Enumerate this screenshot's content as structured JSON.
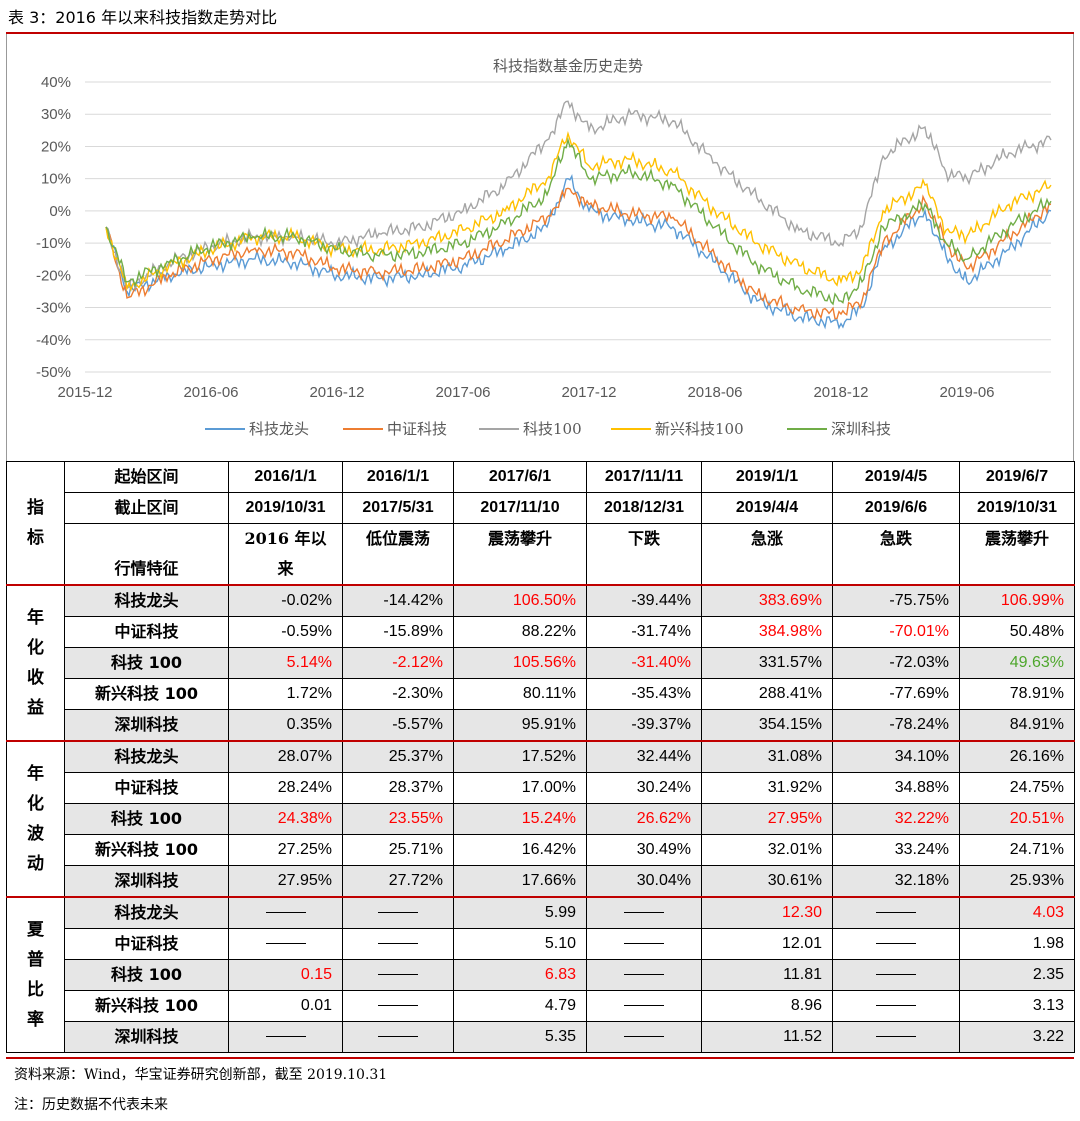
{
  "table_title": "表 3：2016 年以来科技指数走势对比",
  "chart_data": {
    "type": "line",
    "title": "科技指数基金历史走势",
    "yticks": [
      "40%",
      "30%",
      "20%",
      "10%",
      "0%",
      "-10%",
      "-20%",
      "-30%",
      "-40%",
      "-50%"
    ],
    "ylim": [
      -50,
      40
    ],
    "xticks": [
      "2015-12",
      "2016-06",
      "2016-12",
      "2017-06",
      "2017-12",
      "2018-06",
      "2018-12",
      "2019-06"
    ],
    "x_range": [
      "2015-12",
      "2019-10"
    ],
    "grid": true,
    "legend_position": "bottom",
    "series": [
      {
        "name": "科技龙头",
        "color": "#5b9bd5",
        "x": [
          "2016-01",
          "2016-02",
          "2016-04",
          "2016-06",
          "2016-08",
          "2016-10",
          "2016-12",
          "2017-02",
          "2017-04",
          "2017-06",
          "2017-08",
          "2017-10",
          "2017-11",
          "2017-12",
          "2018-02",
          "2018-04",
          "2018-06",
          "2018-08",
          "2018-10",
          "2018-12",
          "2019-01",
          "2019-02",
          "2019-04",
          "2019-05",
          "2019-06",
          "2019-08",
          "2019-10"
        ],
        "y": [
          -5,
          -25,
          -20,
          -17,
          -15,
          -16,
          -20,
          -21,
          -20,
          -17,
          -12,
          -5,
          10,
          0,
          -3,
          -5,
          -16,
          -28,
          -33,
          -35,
          -30,
          -12,
          0,
          -14,
          -22,
          -12,
          0
        ]
      },
      {
        "name": "中证科技",
        "color": "#ed7d31",
        "x": [
          "2016-01",
          "2016-02",
          "2016-04",
          "2016-06",
          "2016-08",
          "2016-10",
          "2016-12",
          "2017-02",
          "2017-04",
          "2017-06",
          "2017-08",
          "2017-10",
          "2017-11",
          "2017-12",
          "2018-02",
          "2018-04",
          "2018-06",
          "2018-08",
          "2018-10",
          "2018-12",
          "2019-01",
          "2019-02",
          "2019-04",
          "2019-05",
          "2019-06",
          "2019-08",
          "2019-10"
        ],
        "y": [
          -5,
          -27,
          -20,
          -15,
          -12,
          -13,
          -18,
          -19,
          -18,
          -15,
          -9,
          -2,
          7,
          2,
          -1,
          -2,
          -14,
          -26,
          -31,
          -32,
          -28,
          -10,
          3,
          -10,
          -18,
          -8,
          2
        ]
      },
      {
        "name": "科技100",
        "color": "#a5a5a5",
        "x": [
          "2016-01",
          "2016-02",
          "2016-04",
          "2016-06",
          "2016-08",
          "2016-10",
          "2016-12",
          "2017-02",
          "2017-04",
          "2017-06",
          "2017-08",
          "2017-10",
          "2017-11",
          "2017-12",
          "2018-02",
          "2018-04",
          "2018-06",
          "2018-08",
          "2018-10",
          "2018-12",
          "2019-01",
          "2019-02",
          "2019-04",
          "2019-05",
          "2019-06",
          "2019-08",
          "2019-10"
        ],
        "y": [
          -5,
          -24,
          -16,
          -11,
          -8,
          -8,
          -10,
          -7,
          -5,
          0,
          8,
          22,
          34,
          25,
          30,
          28,
          15,
          4,
          -6,
          -10,
          -5,
          17,
          26,
          12,
          10,
          18,
          22
        ]
      },
      {
        "name": "新兴科技100",
        "color": "#ffc000",
        "x": [
          "2016-01",
          "2016-02",
          "2016-04",
          "2016-06",
          "2016-08",
          "2016-10",
          "2016-12",
          "2017-02",
          "2017-04",
          "2017-06",
          "2017-08",
          "2017-10",
          "2017-11",
          "2017-12",
          "2018-02",
          "2018-04",
          "2018-06",
          "2018-08",
          "2018-10",
          "2018-12",
          "2019-01",
          "2019-02",
          "2019-04",
          "2019-05",
          "2019-06",
          "2019-08",
          "2019-10"
        ],
        "y": [
          -5,
          -24,
          -17,
          -12,
          -8,
          -8,
          -12,
          -12,
          -10,
          -6,
          0,
          10,
          24,
          14,
          16,
          12,
          0,
          -10,
          -17,
          -22,
          -18,
          0,
          8,
          -6,
          -8,
          2,
          8
        ]
      },
      {
        "name": "深圳科技",
        "color": "#70ad47",
        "x": [
          "2016-01",
          "2016-02",
          "2016-04",
          "2016-06",
          "2016-08",
          "2016-10",
          "2016-12",
          "2017-02",
          "2017-04",
          "2017-06",
          "2017-08",
          "2017-10",
          "2017-11",
          "2017-12",
          "2018-02",
          "2018-04",
          "2018-06",
          "2018-08",
          "2018-10",
          "2018-12",
          "2019-01",
          "2019-02",
          "2019-04",
          "2019-05",
          "2019-06",
          "2019-08",
          "2019-10"
        ],
        "y": [
          -5,
          -22,
          -16,
          -11,
          -8,
          -8,
          -12,
          -14,
          -13,
          -10,
          -4,
          5,
          22,
          10,
          12,
          8,
          -5,
          -17,
          -24,
          -28,
          -22,
          -5,
          2,
          -10,
          -15,
          -5,
          3
        ]
      }
    ]
  },
  "table": {
    "header": {
      "indicator_label": "指标",
      "start_label": "起始区间",
      "end_label": "截止区间",
      "feature_label": "行情特征",
      "periods": [
        {
          "start": "2016/1/1",
          "end": "2019/10/31",
          "feature": "2016 年以来"
        },
        {
          "start": "2016/1/1",
          "end": "2017/5/31",
          "feature": "低位震荡"
        },
        {
          "start": "2017/6/1",
          "end": "2017/11/10",
          "feature": "震荡攀升"
        },
        {
          "start": "2017/11/11",
          "end": "2018/12/31",
          "feature": "下跌"
        },
        {
          "start": "2019/1/1",
          "end": "2019/4/4",
          "feature": "急涨"
        },
        {
          "start": "2019/4/5",
          "end": "2019/6/6",
          "feature": "急跌"
        },
        {
          "start": "2019/6/7",
          "end": "2019/10/31",
          "feature": "震荡攀升"
        }
      ]
    },
    "groups": [
      {
        "label": "年化收益",
        "rows": [
          {
            "name": "科技龙头",
            "values": [
              "-0.02%",
              "-14.42%",
              "106.50%",
              "-39.44%",
              "383.69%",
              "-75.75%",
              "106.99%"
            ]
          },
          {
            "name": "中证科技",
            "values": [
              "-0.59%",
              "-15.89%",
              "88.22%",
              "-31.74%",
              "384.98%",
              "-70.01%",
              "50.48%"
            ]
          },
          {
            "name": "科技 100",
            "values": [
              "5.14%",
              "-2.12%",
              "105.56%",
              "-31.40%",
              "331.57%",
              "-72.03%",
              "49.63%"
            ]
          },
          {
            "name": "新兴科技 100",
            "values": [
              "1.72%",
              "-2.30%",
              "80.11%",
              "-35.43%",
              "288.41%",
              "-77.69%",
              "78.91%"
            ]
          },
          {
            "name": "深圳科技",
            "values": [
              "0.35%",
              "-5.57%",
              "95.91%",
              "-39.37%",
              "354.15%",
              "-78.24%",
              "84.91%"
            ]
          }
        ]
      },
      {
        "label": "年化波动",
        "rows": [
          {
            "name": "科技龙头",
            "values": [
              "28.07%",
              "25.37%",
              "17.52%",
              "32.44%",
              "31.08%",
              "34.10%",
              "26.16%"
            ]
          },
          {
            "name": "中证科技",
            "values": [
              "28.24%",
              "28.37%",
              "17.00%",
              "30.24%",
              "31.92%",
              "34.88%",
              "24.75%"
            ]
          },
          {
            "name": "科技 100",
            "values": [
              "24.38%",
              "23.55%",
              "15.24%",
              "26.62%",
              "27.95%",
              "32.22%",
              "20.51%"
            ]
          },
          {
            "name": "新兴科技 100",
            "values": [
              "27.25%",
              "25.71%",
              "16.42%",
              "30.49%",
              "32.01%",
              "33.24%",
              "24.71%"
            ]
          },
          {
            "name": "深圳科技",
            "values": [
              "27.95%",
              "27.72%",
              "17.66%",
              "30.04%",
              "30.61%",
              "32.18%",
              "25.93%"
            ]
          }
        ]
      },
      {
        "label": "夏普比率",
        "rows": [
          {
            "name": "科技龙头",
            "values": [
              "",
              "",
              "5.99",
              "",
              "12.30",
              "",
              "4.03"
            ]
          },
          {
            "name": "中证科技",
            "values": [
              "",
              "",
              "5.10",
              "",
              "12.01",
              "",
              "1.98"
            ]
          },
          {
            "name": "科技 100",
            "values": [
              "0.15",
              "",
              "6.83",
              "",
              "11.81",
              "",
              "2.35"
            ]
          },
          {
            "name": "新兴科技 100",
            "values": [
              "0.01",
              "",
              "4.79",
              "",
              "8.96",
              "",
              "3.13"
            ]
          },
          {
            "name": "深圳科技",
            "values": [
              "",
              "",
              "5.35",
              "",
              "11.52",
              "",
              "3.22"
            ]
          }
        ]
      }
    ],
    "highlight_red": [
      [
        0,
        0,
        2
      ],
      [
        0,
        0,
        4
      ],
      [
        0,
        0,
        6
      ],
      [
        0,
        1,
        4
      ],
      [
        0,
        1,
        5
      ],
      [
        0,
        2,
        0
      ],
      [
        0,
        2,
        1
      ],
      [
        0,
        2,
        2
      ],
      [
        0,
        2,
        3
      ],
      [
        1,
        2,
        0
      ],
      [
        1,
        2,
        1
      ],
      [
        1,
        2,
        2
      ],
      [
        1,
        2,
        3
      ],
      [
        1,
        2,
        4
      ],
      [
        1,
        2,
        5
      ],
      [
        1,
        2,
        6
      ],
      [
        2,
        0,
        4
      ],
      [
        2,
        0,
        6
      ],
      [
        2,
        2,
        0
      ],
      [
        2,
        2,
        2
      ]
    ],
    "highlight_green": [
      [
        0,
        2,
        6
      ]
    ]
  },
  "footer": {
    "source": "资料来源：Wind，华宝证券研究创新部，截至 2019.10.31",
    "note": "注：历史数据不代表未来"
  }
}
